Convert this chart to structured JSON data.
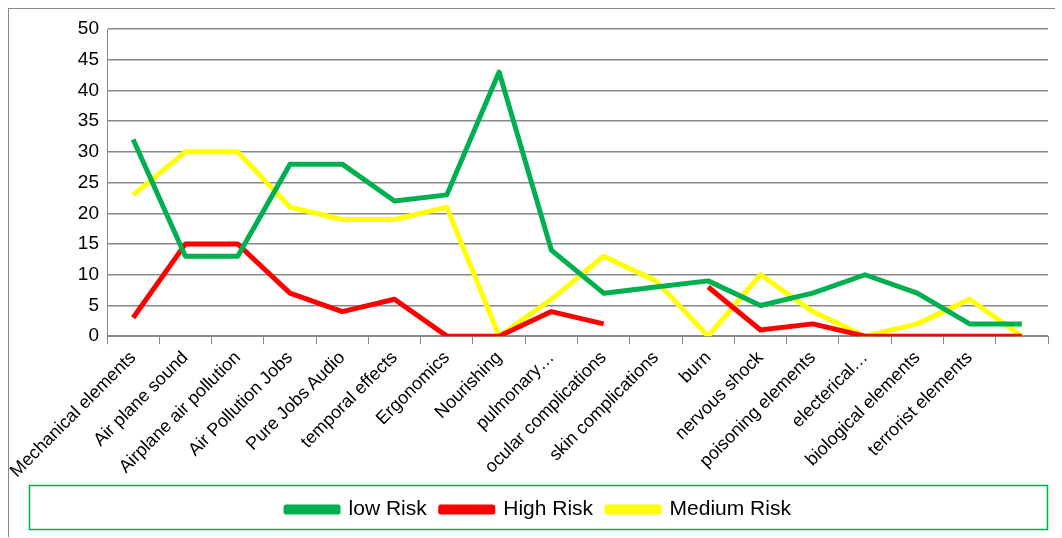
{
  "chart_data": {
    "type": "line",
    "categories": [
      "Mechanical elements",
      "Air plane sound",
      "Airplane air pollution",
      "Air Pollution Jobs",
      "Pure Jobs Audio",
      "temporal effects",
      "Ergonomics",
      "Nourishing",
      "pulmonary…",
      "ocular complications",
      "skin complications",
      "burn",
      "nervous shock",
      "poisoning elements",
      "electerical…",
      "biological elements",
      "terrorist elements",
      null
    ],
    "series": [
      {
        "name": "low Risk",
        "color": "#00b050",
        "values": [
          32,
          13,
          13,
          28,
          28,
          22,
          23,
          43,
          14,
          7,
          8,
          9,
          5,
          7,
          10,
          7,
          2,
          2
        ]
      },
      {
        "name": "High Risk",
        "color": "#ff0000",
        "values": [
          3,
          15,
          15,
          7,
          4,
          6,
          0,
          0,
          4,
          2,
          null,
          8,
          1,
          2,
          0,
          0,
          0,
          0
        ]
      },
      {
        "name": "Medium Risk",
        "color": "#ffff00",
        "values": [
          23,
          30,
          30,
          21,
          19,
          19,
          21,
          0,
          6,
          13,
          9,
          0,
          10,
          4,
          0,
          2,
          6,
          0
        ]
      }
    ],
    "ylim": [
      0,
      50
    ],
    "yticks": [
      0,
      5,
      10,
      15,
      20,
      25,
      30,
      35,
      40,
      45,
      50
    ],
    "grid": "y",
    "legend": "bottom",
    "marker": "none",
    "line_style": "solid"
  }
}
